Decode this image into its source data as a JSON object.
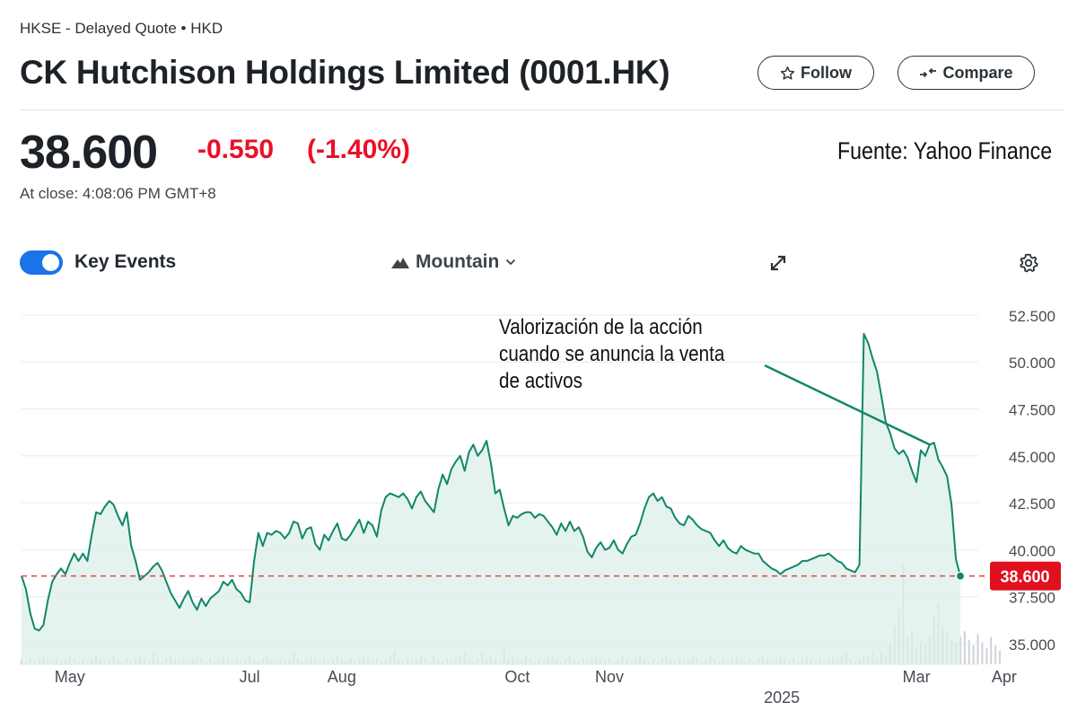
{
  "header": {
    "exchange_line": "HKSE - Delayed Quote • HKD",
    "title": "CK Hutchison Holdings Limited (0001.HK)",
    "follow_label": "Follow",
    "compare_label": "Compare"
  },
  "quote": {
    "price": "38.600",
    "change": "-0.550",
    "change_pct": "(-1.40%)",
    "close_time": "At close: 4:08:06 PM GMT+8",
    "source": "Fuente: Yahoo Finance",
    "negative_color": "#eb0f29"
  },
  "controls": {
    "key_events_label": "Key Events",
    "key_events_on": true,
    "chart_type_label": "Mountain",
    "expand_icon": "expand-icon",
    "settings_icon": "gear-icon"
  },
  "chart_data": {
    "type": "area",
    "line_color": "#10876a",
    "fill_color": "#dcefe9",
    "reference_line_color": "#e0453a",
    "ylim": [
      33900,
      53500
    ],
    "y_ticks": [
      35000,
      37500,
      40000,
      42500,
      45000,
      47500,
      50000,
      52500
    ],
    "y_tick_labels": [
      "35.000",
      "37.500",
      "40.000",
      "42.500",
      "45.000",
      "47.500",
      "50.000",
      "52.500"
    ],
    "x_ticks": [
      {
        "label": "May",
        "index": 11
      },
      {
        "label": "Jul",
        "index": 52
      },
      {
        "label": "Aug",
        "index": 73
      },
      {
        "label": "Oct",
        "index": 113
      },
      {
        "label": "Nov",
        "index": 134
      },
      {
        "label": "Mar",
        "index": 204
      },
      {
        "label": "Apr",
        "index": 224
      }
    ],
    "x_sublabel": "2025",
    "current_value": 38600,
    "current_label": "38.600",
    "annotation": "Valorización de la acción\ncuando se anuncia la venta\nde activos",
    "annotation_index": 207,
    "series": [
      {
        "values": [
          38600,
          37900,
          36600,
          35800,
          35700,
          36000,
          37300,
          38300,
          38700,
          39000,
          38700,
          39300,
          39800,
          39400,
          39800,
          39400,
          40800,
          42000,
          41900,
          42300,
          42600,
          42400,
          41800,
          41300,
          42000,
          40200,
          39400,
          38400,
          38600,
          38800,
          39100,
          39300,
          38900,
          38300,
          37700,
          37300,
          36900,
          37400,
          37800,
          37200,
          36800,
          37400,
          37000,
          37400,
          37600,
          37800,
          38300,
          38100,
          38400,
          37900,
          37700,
          37300,
          37200,
          39400,
          40900,
          40200,
          40900,
          40800,
          41000,
          40900,
          40600,
          40900,
          41500,
          41400,
          40600,
          41100,
          41200,
          40300,
          40000,
          40800,
          40500,
          41000,
          41400,
          40600,
          40500,
          40800,
          41200,
          41600,
          40900,
          41500,
          41300,
          40700,
          42100,
          42800,
          43000,
          42900,
          42800,
          43000,
          42700,
          42200,
          42800,
          43100,
          42600,
          42300,
          42000,
          43200,
          44000,
          43500,
          44300,
          44700,
          45000,
          44200,
          45200,
          45600,
          45000,
          45300,
          45800,
          44600,
          43000,
          43200,
          42200,
          41300,
          41800,
          41700,
          41900,
          42000,
          42000,
          41700,
          41900,
          41800,
          41500,
          41200,
          40800,
          41400,
          41000,
          41500,
          41000,
          41200,
          40700,
          39900,
          39600,
          40100,
          40400,
          40000,
          40100,
          40500,
          40000,
          39800,
          40300,
          40700,
          40800,
          41400,
          42200,
          42800,
          43000,
          42600,
          42800,
          42300,
          42200,
          41700,
          41400,
          41300,
          41800,
          41600,
          41300,
          41100,
          41000,
          40900,
          40500,
          40200,
          40500,
          40100,
          39900,
          39800,
          40200,
          40000,
          39900,
          39800,
          39800,
          39400,
          39200,
          39000,
          38900,
          38700,
          38900,
          39000,
          39100,
          39200,
          39400,
          39400,
          39500,
          39600,
          39700,
          39700,
          39800,
          39600,
          39400,
          39300,
          39000,
          38900,
          38800,
          39200,
          51500,
          51000,
          50200,
          49500,
          48200,
          46800,
          46200,
          45400,
          45100,
          45300,
          44900,
          44200,
          43600,
          45300,
          45000,
          45600,
          45700,
          44800,
          44400,
          43900,
          42400,
          39500,
          38600
        ]
      }
    ],
    "volume": [
      2,
      1,
      2,
      1,
      2,
      3,
      2,
      1,
      2,
      1,
      2,
      3,
      2,
      1,
      2,
      1,
      2,
      3,
      2,
      1,
      2,
      3,
      2,
      1,
      2,
      1,
      2,
      3,
      2,
      1,
      4,
      2,
      1,
      2,
      3,
      2,
      1,
      2,
      1,
      2,
      3,
      2,
      1,
      2,
      1,
      2,
      3,
      2,
      1,
      2,
      1,
      2,
      3,
      2,
      1,
      2,
      3,
      2,
      1,
      2,
      1,
      2,
      4,
      2,
      1,
      2,
      3,
      2,
      1,
      2,
      1,
      2,
      3,
      2,
      1,
      2,
      1,
      2,
      3,
      2,
      1,
      2,
      1,
      2,
      3,
      5,
      2,
      1,
      2,
      1,
      2,
      3,
      2,
      1,
      3,
      2,
      1,
      2,
      1,
      2,
      3,
      4,
      2,
      1,
      2,
      4,
      2,
      3,
      2,
      1,
      6,
      2,
      3,
      2,
      1,
      3,
      2,
      1,
      2,
      1,
      2,
      3,
      2,
      1,
      2,
      3,
      2,
      1,
      2,
      1,
      2,
      3,
      2,
      1,
      2,
      1,
      2,
      3,
      2,
      1,
      2,
      3,
      2,
      1,
      2,
      1,
      2,
      3,
      2,
      1,
      2,
      1,
      2,
      3,
      2,
      1,
      2,
      3,
      2,
      1,
      2,
      1,
      2,
      3,
      2,
      1,
      2,
      1,
      2,
      3,
      2,
      1,
      2,
      3,
      2,
      1,
      2,
      1,
      2,
      3,
      2,
      1,
      2,
      1,
      2,
      3,
      2,
      3,
      4,
      2,
      1,
      2,
      3,
      3,
      4,
      2,
      5,
      3,
      8,
      14,
      20,
      36,
      10,
      12,
      6,
      8,
      7,
      10,
      18,
      22,
      14,
      12,
      9,
      8,
      10,
      12,
      9,
      7,
      11,
      8,
      6,
      10,
      7,
      5
    ]
  }
}
